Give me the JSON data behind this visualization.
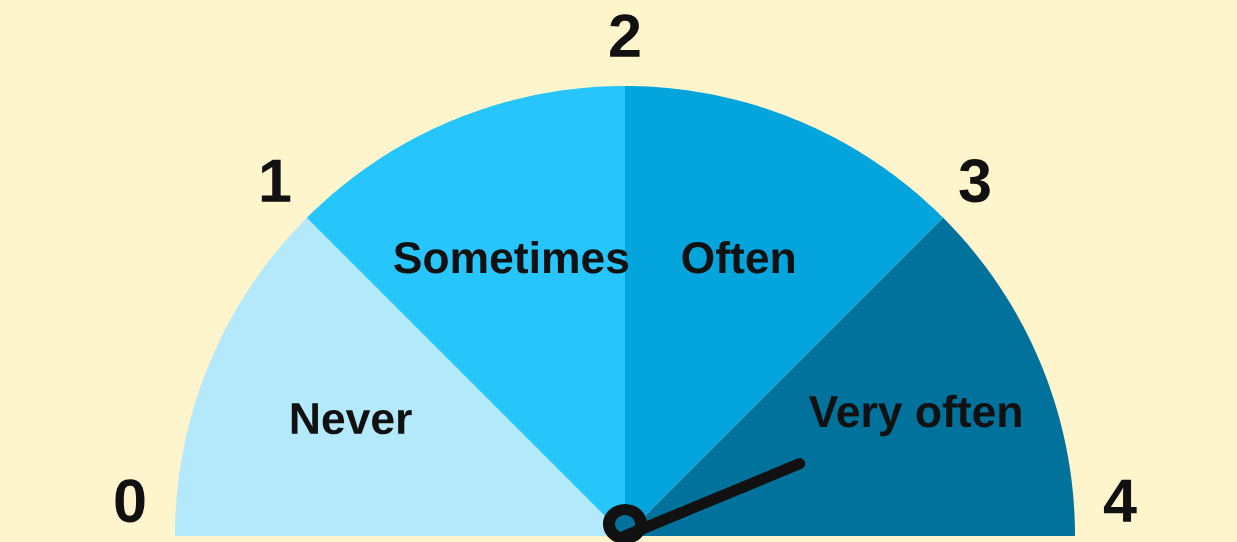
{
  "chart_data": {
    "type": "pie",
    "categories": [
      "Never",
      "Sometimes",
      "Often",
      "Very often"
    ],
    "values": [
      25,
      25,
      25,
      25
    ],
    "colors": [
      "#b3e9fb",
      "#26c6fd",
      "#03a5dc",
      "#00729c"
    ],
    "annotations": [
      "0",
      "1",
      "2",
      "3",
      "4"
    ],
    "needle": "Very often"
  }
}
